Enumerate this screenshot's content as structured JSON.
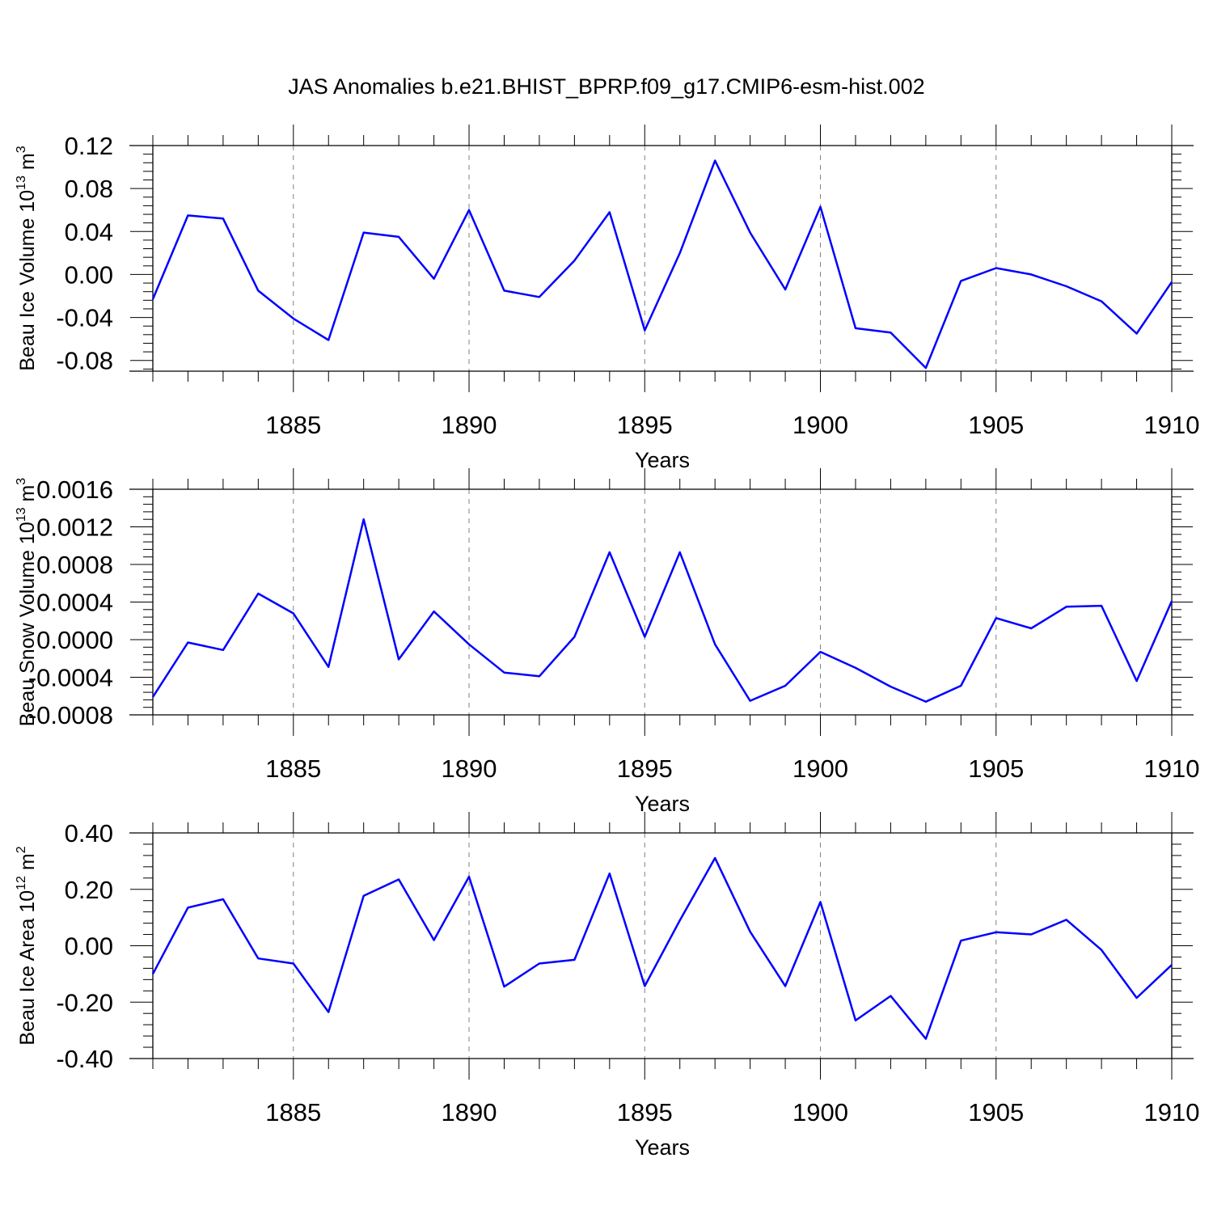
{
  "title": "JAS Anomalies b.e21.BHIST_BPRP.f09_g17.CMIP6-esm-hist.002",
  "colors": {
    "line": "#0000ff",
    "axis": "#000000",
    "grid": "#808080"
  },
  "chart_data": [
    {
      "type": "line",
      "ylabel": "Beau Ice Volume 10",
      "ylabel_exponent": "13",
      "ylabel_unit": "m",
      "ylabel_unit_exponent": "3",
      "xlabel": "Years",
      "xlim": [
        1881,
        1910
      ],
      "ylim": [
        -0.09,
        0.12
      ],
      "yticks": [
        "0.12",
        "0.08",
        "0.04",
        "0.00",
        "-0.04",
        "-0.08"
      ],
      "yticks_values": [
        0.12,
        0.08,
        0.04,
        0.0,
        -0.04,
        -0.08
      ],
      "xticks": [
        "1885",
        "1890",
        "1895",
        "1900",
        "1905",
        "1910"
      ],
      "xticks_values": [
        1885,
        1890,
        1895,
        1900,
        1905,
        1910
      ],
      "grid": "vertical dashed at major x ticks",
      "series": [
        {
          "x": [
            1881,
            1882,
            1883,
            1884,
            1885,
            1886,
            1887,
            1888,
            1889,
            1890,
            1891,
            1892,
            1893,
            1894,
            1895,
            1896,
            1897,
            1898,
            1899,
            1900,
            1901,
            1902,
            1903,
            1904,
            1905,
            1906,
            1907,
            1908,
            1909,
            1910
          ],
          "values": [
            -0.023,
            0.055,
            0.052,
            -0.015,
            -0.041,
            -0.061,
            0.039,
            0.035,
            -0.004,
            0.06,
            -0.015,
            -0.021,
            0.013,
            0.058,
            -0.052,
            0.02,
            0.106,
            0.039,
            -0.014,
            0.063,
            -0.05,
            -0.054,
            -0.087,
            -0.006,
            0.006,
            0.0,
            -0.011,
            -0.025,
            -0.055,
            -0.007
          ]
        }
      ]
    },
    {
      "type": "line",
      "ylabel": "Beau Snow Volume 10",
      "ylabel_exponent": "13",
      "ylabel_unit": "m",
      "ylabel_unit_exponent": "3",
      "xlabel": "Years",
      "xlim": [
        1881,
        1910
      ],
      "ylim": [
        -0.0008,
        0.0016
      ],
      "yticks": [
        "0.0016",
        "0.0012",
        "0.0008",
        "0.0004",
        "0.0000",
        "-0.0004",
        "-0.0008"
      ],
      "yticks_values": [
        0.0016,
        0.0012,
        0.0008,
        0.0004,
        0.0,
        -0.0004,
        -0.0008
      ],
      "xticks": [
        "1885",
        "1890",
        "1895",
        "1900",
        "1905",
        "1910"
      ],
      "xticks_values": [
        1885,
        1890,
        1895,
        1900,
        1905,
        1910
      ],
      "grid": "vertical dashed at major x ticks",
      "series": [
        {
          "x": [
            1881,
            1882,
            1883,
            1884,
            1885,
            1886,
            1887,
            1888,
            1889,
            1890,
            1891,
            1892,
            1893,
            1894,
            1895,
            1896,
            1897,
            1898,
            1899,
            1900,
            1901,
            1902,
            1903,
            1904,
            1905,
            1906,
            1907,
            1908,
            1909,
            1910
          ],
          "values": [
            -0.00061,
            -3e-05,
            -0.00011,
            0.00049,
            0.00028,
            -0.00029,
            0.00128,
            -0.00021,
            0.0003,
            -5e-05,
            -0.00035,
            -0.00039,
            3e-05,
            0.00093,
            3e-05,
            0.00093,
            -5e-05,
            -0.00065,
            -0.00049,
            -0.00013,
            -0.0003,
            -0.0005,
            -0.00066,
            -0.00049,
            0.00023,
            0.00012,
            0.00035,
            0.00036,
            -0.00044,
            0.00041
          ]
        }
      ]
    },
    {
      "type": "line",
      "ylabel": "Beau Ice Area 10",
      "ylabel_exponent": "12",
      "ylabel_unit": "m",
      "ylabel_unit_exponent": "2",
      "xlabel": "Years",
      "xlim": [
        1881,
        1910
      ],
      "ylim": [
        -0.4,
        0.4
      ],
      "yticks": [
        "0.40",
        "0.20",
        "0.00",
        "-0.20",
        "-0.40"
      ],
      "yticks_values": [
        0.4,
        0.2,
        0.0,
        -0.2,
        -0.4
      ],
      "xticks": [
        "1885",
        "1890",
        "1895",
        "1900",
        "1905",
        "1910"
      ],
      "xticks_values": [
        1885,
        1890,
        1895,
        1900,
        1905,
        1910
      ],
      "grid": "vertical dashed at major x ticks",
      "series": [
        {
          "x": [
            1881,
            1882,
            1883,
            1884,
            1885,
            1886,
            1887,
            1888,
            1889,
            1890,
            1891,
            1892,
            1893,
            1894,
            1895,
            1896,
            1897,
            1898,
            1899,
            1900,
            1901,
            1902,
            1903,
            1904,
            1905,
            1906,
            1907,
            1908,
            1909,
            1910
          ],
          "values": [
            -0.1,
            0.135,
            0.165,
            -0.045,
            -0.063,
            -0.235,
            0.177,
            0.235,
            0.02,
            0.245,
            -0.145,
            -0.063,
            -0.05,
            0.256,
            -0.143,
            0.09,
            0.311,
            0.05,
            -0.143,
            0.155,
            -0.265,
            -0.178,
            -0.33,
            0.018,
            0.048,
            0.04,
            0.092,
            -0.015,
            -0.185,
            -0.068
          ]
        }
      ]
    }
  ]
}
